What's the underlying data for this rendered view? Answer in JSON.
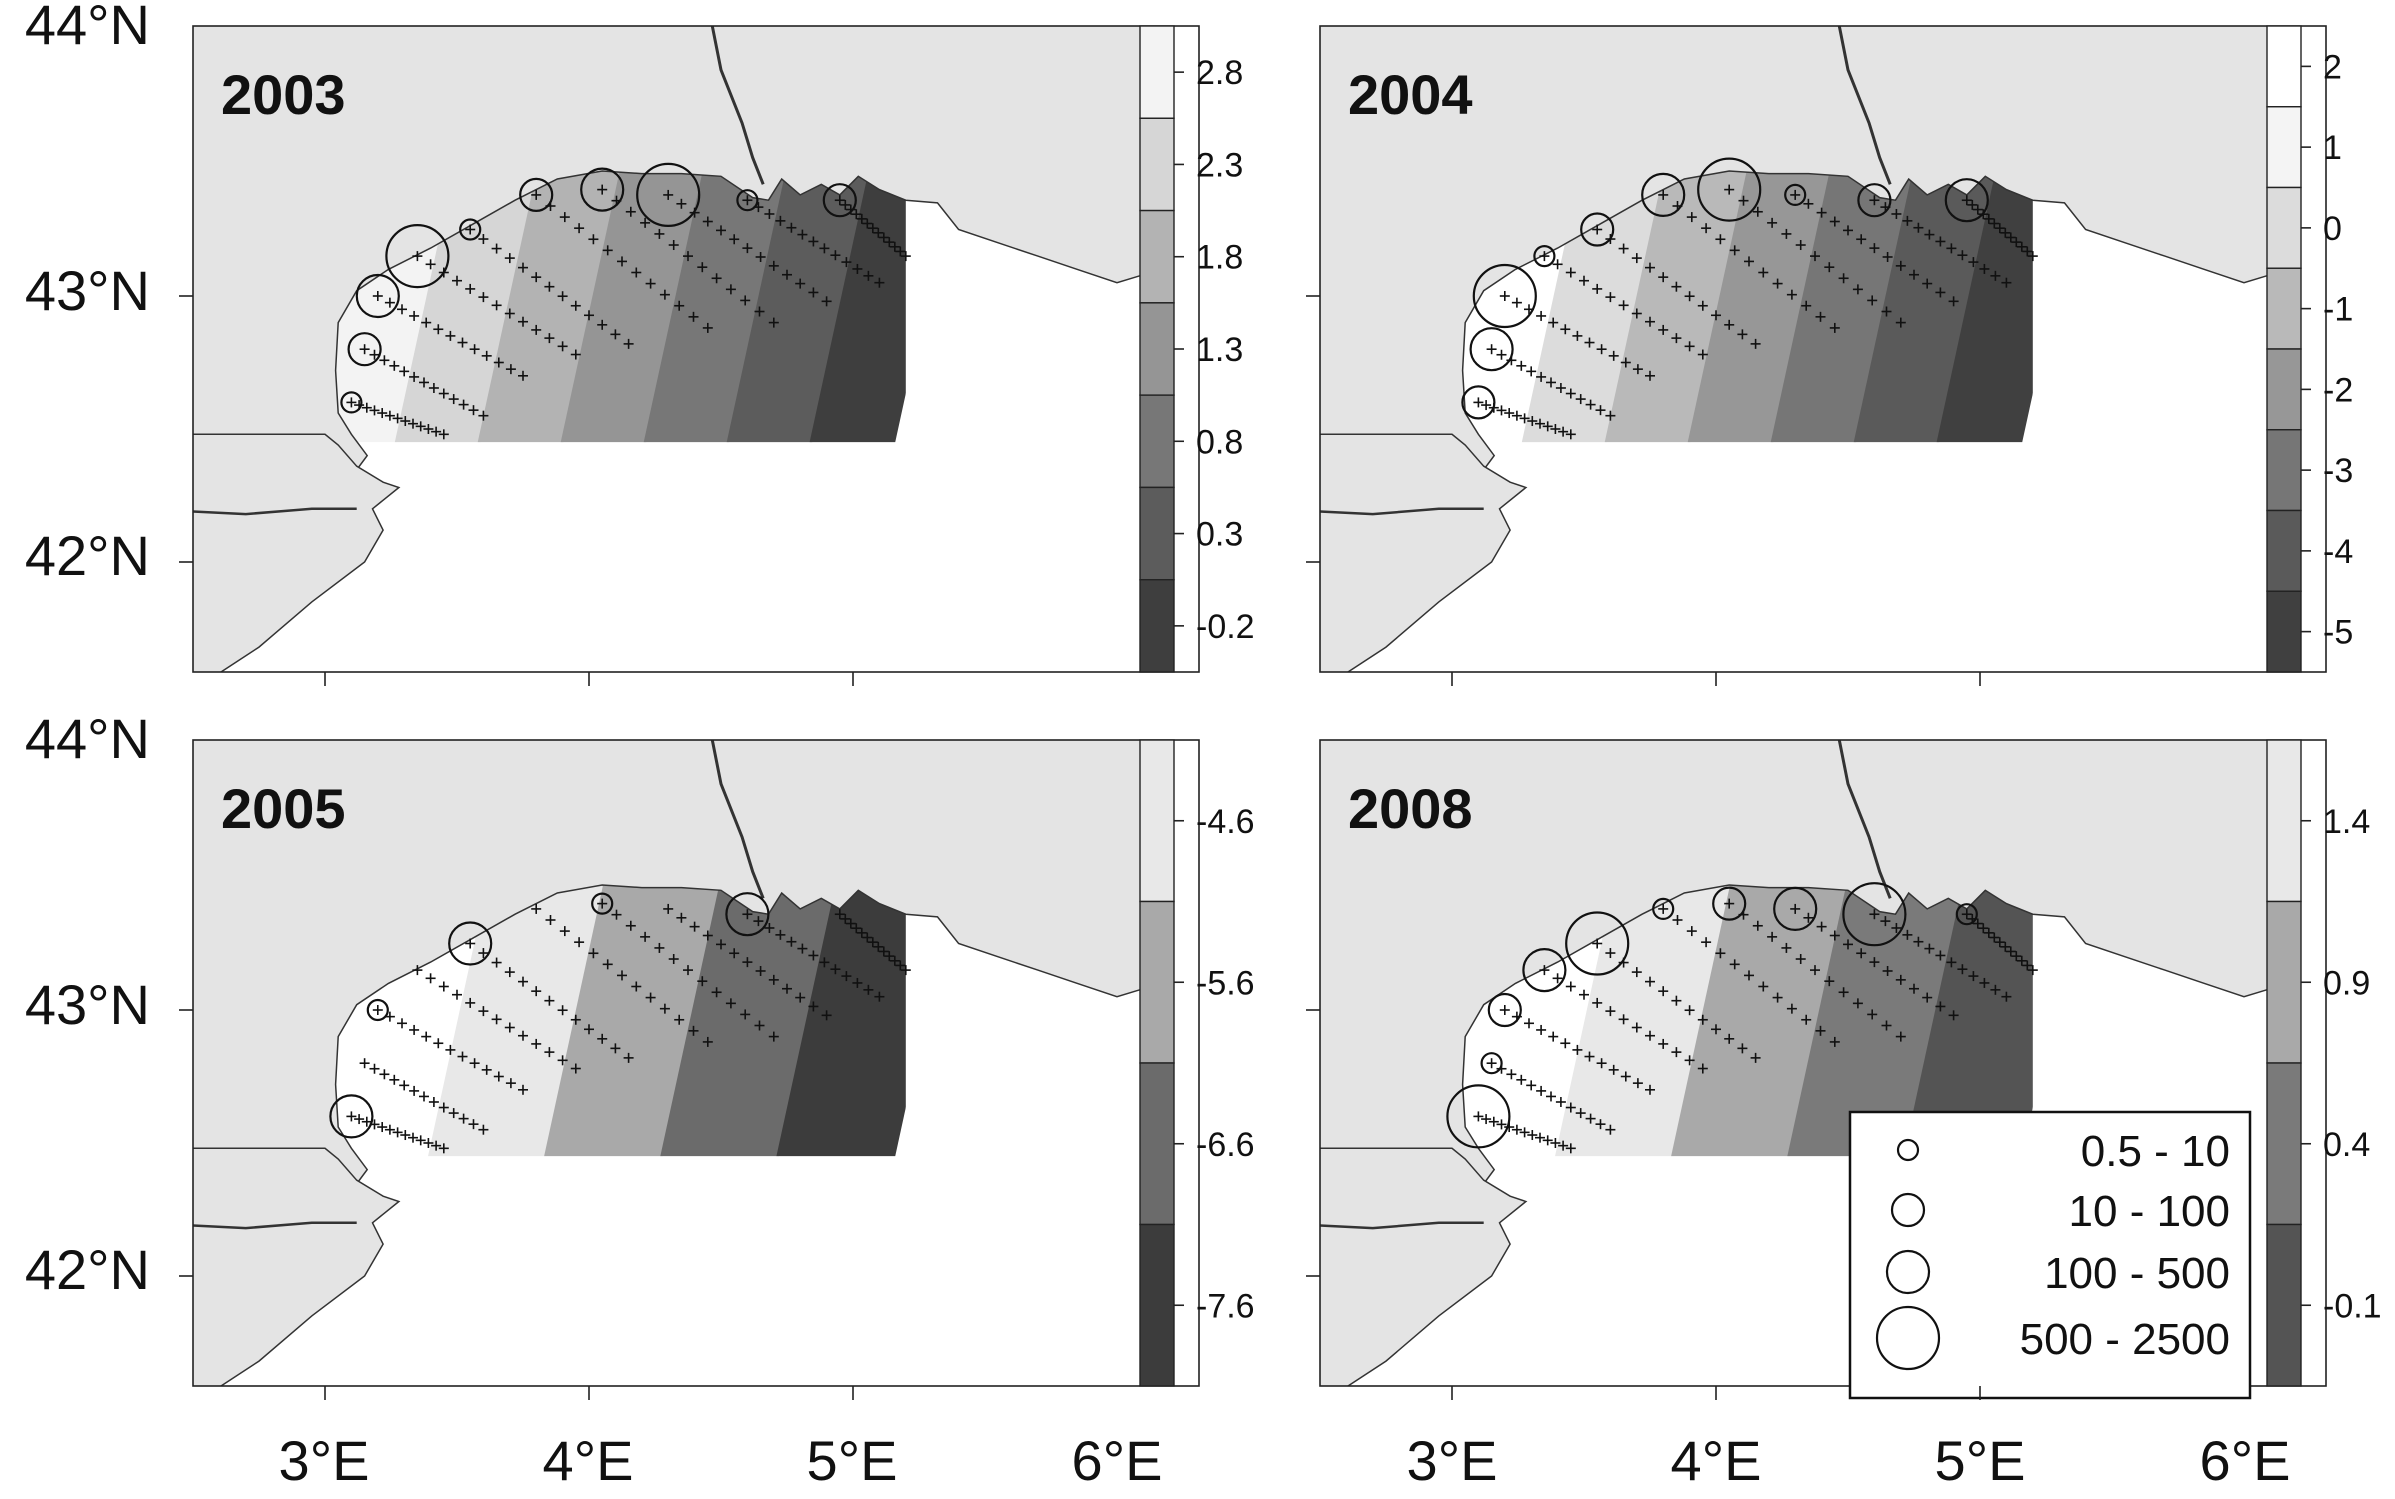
{
  "figure": {
    "axis_labels": {
      "lat": [
        "44°N",
        "43°N",
        "42°N"
      ],
      "lon": [
        "3°E",
        "4°E",
        "5°E",
        "6°E"
      ]
    },
    "colors": {
      "land": "#e4e4e4",
      "sea": "#ffffff",
      "frame": "#222222"
    }
  },
  "panels": [
    {
      "year": "2003",
      "colorbar_labels": [
        "2.8",
        "2.3",
        "1.8",
        "1.3",
        "0.8",
        "0.3",
        "-0.2"
      ],
      "colorbar_fills": [
        "#f3f3f3",
        "#d6d6d6",
        "#b3b3b3",
        "#959595",
        "#777777",
        "#5c5c5c",
        "#3e3e3e"
      ],
      "zone_fills": [
        "#f3f3f3",
        "#d6d6d6",
        "#b3b3b3",
        "#959595",
        "#777777",
        "#5c5c5c",
        "#3e3e3e"
      ]
    },
    {
      "year": "2004",
      "colorbar_labels": [
        "2",
        "1",
        "0",
        "-1",
        "-2",
        "-3",
        "-4",
        "-5"
      ],
      "colorbar_fills": [
        "#ffffff",
        "#f4f4f4",
        "#dcdcdc",
        "#b9b9b9",
        "#979797",
        "#767676",
        "#5a5a5a",
        "#404040"
      ],
      "zone_fills": [
        "#ffffff",
        "#dcdcdc",
        "#b9b9b9",
        "#979797",
        "#767676",
        "#5a5a5a",
        "#404040"
      ]
    },
    {
      "year": "2005",
      "colorbar_labels": [
        "-4.6",
        "-5.6",
        "-6.6",
        "-7.6"
      ],
      "colorbar_fills": [
        "#e8e8e8",
        "#a9a9a9",
        "#6b6b6b",
        "#3c3c3c"
      ],
      "zone_fills": [
        "#ffffff",
        "#e8e8e8",
        "#a9a9a9",
        "#6b6b6b",
        "#3c3c3c"
      ]
    },
    {
      "year": "2008",
      "colorbar_labels": [
        "1.4",
        "0.9",
        "0.4",
        "-0.1"
      ],
      "colorbar_fills": [
        "#e8e8e8",
        "#a9a9a9",
        "#7a7a7a",
        "#545454"
      ],
      "zone_fills": [
        "#ffffff",
        "#e8e8e8",
        "#a9a9a9",
        "#7a7a7a",
        "#545454"
      ]
    }
  ],
  "legend": {
    "entries": [
      {
        "label": "0.5 - 10",
        "size_class": 1
      },
      {
        "label": "10 - 100",
        "size_class": 2
      },
      {
        "label": "100 - 500",
        "size_class": 3
      },
      {
        "label": "500 - 2500",
        "size_class": 4
      }
    ]
  }
}
